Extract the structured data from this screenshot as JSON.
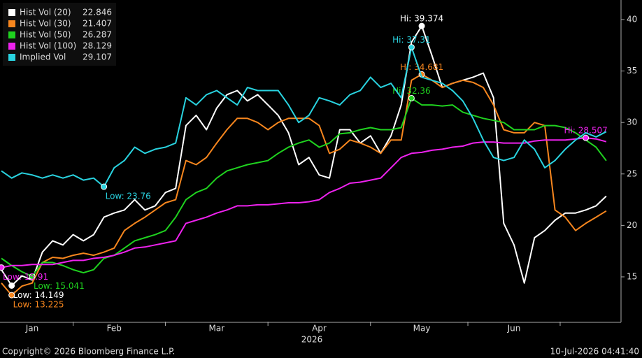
{
  "chart_data": {
    "type": "line",
    "categories": [
      null,
      null,
      null,
      "Jan",
      null,
      null,
      null,
      null,
      null,
      null,
      null,
      "Feb",
      null,
      null,
      null,
      null,
      null,
      null,
      null,
      null,
      null,
      "Mar",
      null,
      null,
      null,
      null,
      null,
      null,
      null,
      null,
      null,
      "Apr",
      null,
      null,
      null,
      null,
      null,
      null,
      null,
      null,
      null,
      "May",
      null,
      null,
      null,
      null,
      null,
      null,
      null,
      null,
      "Jun",
      null,
      null,
      null,
      null,
      null,
      null,
      null,
      null,
      null
    ],
    "xlabel": "2026",
    "ylim": [
      10.65,
      41.9
    ],
    "yticks": [
      15,
      20,
      25,
      30,
      35,
      40
    ],
    "series": [
      {
        "name": "Hist Vol (20)",
        "color": "#ffffff",
        "values": [
          15.7,
          14.149,
          15.1,
          14.7,
          17.4,
          18.5,
          18.1,
          19.1,
          18.5,
          19.1,
          20.8,
          21.2,
          21.5,
          22.5,
          21.5,
          21.9,
          23.2,
          23.6,
          29.7,
          30.7,
          29.3,
          31.4,
          32.7,
          33.1,
          32.1,
          32.7,
          31.7,
          30.7,
          29,
          25.9,
          26.6,
          24.9,
          24.6,
          29.3,
          29.3,
          28,
          28.7,
          27,
          28.7,
          31.7,
          37.8,
          39.374,
          36.5,
          33.4,
          33.8,
          34.1,
          34.4,
          34.8,
          32.4,
          20.2,
          18.1,
          14.4,
          18.8,
          19.5,
          20.5,
          21.2,
          21.2,
          21.5,
          21.9,
          22.846
        ],
        "annotations": [
          {
            "label": "Hi: 39.374",
            "value": 39.374
          },
          {
            "label": "Low: 14.149",
            "value": 14.149
          }
        ]
      },
      {
        "name": "Hist Vol (30)",
        "color": "#f7861e",
        "values": [
          14.4,
          13.225,
          14.1,
          14.4,
          16.4,
          16.9,
          16.8,
          17.1,
          17.3,
          17.1,
          17.4,
          17.8,
          19.5,
          20.2,
          20.8,
          21.5,
          22.2,
          22.5,
          26.3,
          25.9,
          26.6,
          28,
          29.3,
          30.4,
          30.4,
          30,
          29.3,
          30,
          30.4,
          30.4,
          30.4,
          29.7,
          27,
          27.4,
          28.3,
          28,
          27.6,
          27,
          28.3,
          28.3,
          34.1,
          34.681,
          34.1,
          33.4,
          33.8,
          34.1,
          33.9,
          33.4,
          31.7,
          29.3,
          29,
          29,
          30,
          29.7,
          21.5,
          20.8,
          19.5,
          20.2,
          20.8,
          21.407
        ],
        "annotations": [
          {
            "label": "Hi: 34.681",
            "value": 34.681
          },
          {
            "label": "Low: 13.225",
            "value": 13.225
          }
        ]
      },
      {
        "name": "Hist Vol (50)",
        "color": "#1fd21f",
        "values": [
          16.8,
          16.1,
          15.5,
          15.041,
          16.4,
          16.4,
          16.1,
          15.7,
          15.4,
          15.7,
          16.8,
          17.1,
          17.8,
          18.5,
          18.8,
          19.1,
          19.5,
          20.8,
          22.5,
          23.2,
          23.6,
          24.6,
          25.3,
          25.6,
          25.9,
          26.1,
          26.3,
          27,
          27.6,
          28,
          28.3,
          27.6,
          28,
          28.9,
          29,
          29.3,
          29.5,
          29.3,
          29.3,
          29.5,
          32.36,
          31.7,
          31.7,
          31.6,
          31.7,
          31,
          30.7,
          30.4,
          30.2,
          30,
          29.3,
          29.3,
          29.3,
          29.7,
          29.7,
          29.5,
          29,
          28.3,
          27.6,
          26.287
        ],
        "annotations": [
          {
            "label": "Hi: 32.36",
            "value": 32.36
          },
          {
            "label": "Low: 15.041",
            "value": 15.041
          }
        ]
      },
      {
        "name": "Hist Vol (100)",
        "color": "#ee22ee",
        "values": [
          15.91,
          16.1,
          16.1,
          16.2,
          16.2,
          16.2,
          16.4,
          16.6,
          16.6,
          16.8,
          16.9,
          17.1,
          17.4,
          17.8,
          17.9,
          18.1,
          18.3,
          18.5,
          20.2,
          20.5,
          20.8,
          21.2,
          21.5,
          21.9,
          21.9,
          22,
          22,
          22.1,
          22.2,
          22.2,
          22.3,
          22.5,
          23.2,
          23.6,
          24.1,
          24.2,
          24.4,
          24.6,
          25.6,
          26.6,
          27,
          27.1,
          27.3,
          27.4,
          27.6,
          27.7,
          28,
          28.1,
          28.1,
          28,
          28,
          28,
          28.2,
          28.3,
          28.3,
          28.3,
          28.4,
          28.507,
          28.4,
          28.129
        ],
        "annotations": [
          {
            "label": "Hi: 28.507",
            "value": 28.507
          },
          {
            "label": "Low: 15.91",
            "value": 15.91
          }
        ]
      },
      {
        "name": "Implied Vol",
        "color": "#29d3e0",
        "values": [
          25.3,
          24.6,
          25.1,
          24.9,
          24.6,
          24.9,
          24.6,
          24.9,
          24.4,
          24.6,
          23.76,
          25.6,
          26.3,
          27.6,
          27,
          27.4,
          27.6,
          28,
          32.4,
          31.7,
          32.7,
          33.1,
          32.4,
          31.7,
          33.4,
          33.1,
          33.1,
          33.1,
          31.7,
          30,
          30.7,
          32.4,
          32.1,
          31.7,
          32.7,
          33.1,
          34.4,
          33.4,
          33.8,
          32.4,
          37.31,
          34.4,
          34.1,
          33.8,
          33.1,
          32.1,
          30.4,
          28.3,
          26.6,
          26.3,
          26.6,
          28.3,
          27.4,
          25.6,
          26.3,
          27.4,
          28.3,
          29,
          28.6,
          29.107
        ],
        "annotations": [
          {
            "label": "Hi: 37.31",
            "value": 37.31
          },
          {
            "label": "Low: 23.76",
            "value": 23.76
          }
        ]
      }
    ],
    "footer_left": "Copyright© 2026 Bloomberg Finance L.P.",
    "footer_right": "10-Jul-2026 04:41:40"
  }
}
